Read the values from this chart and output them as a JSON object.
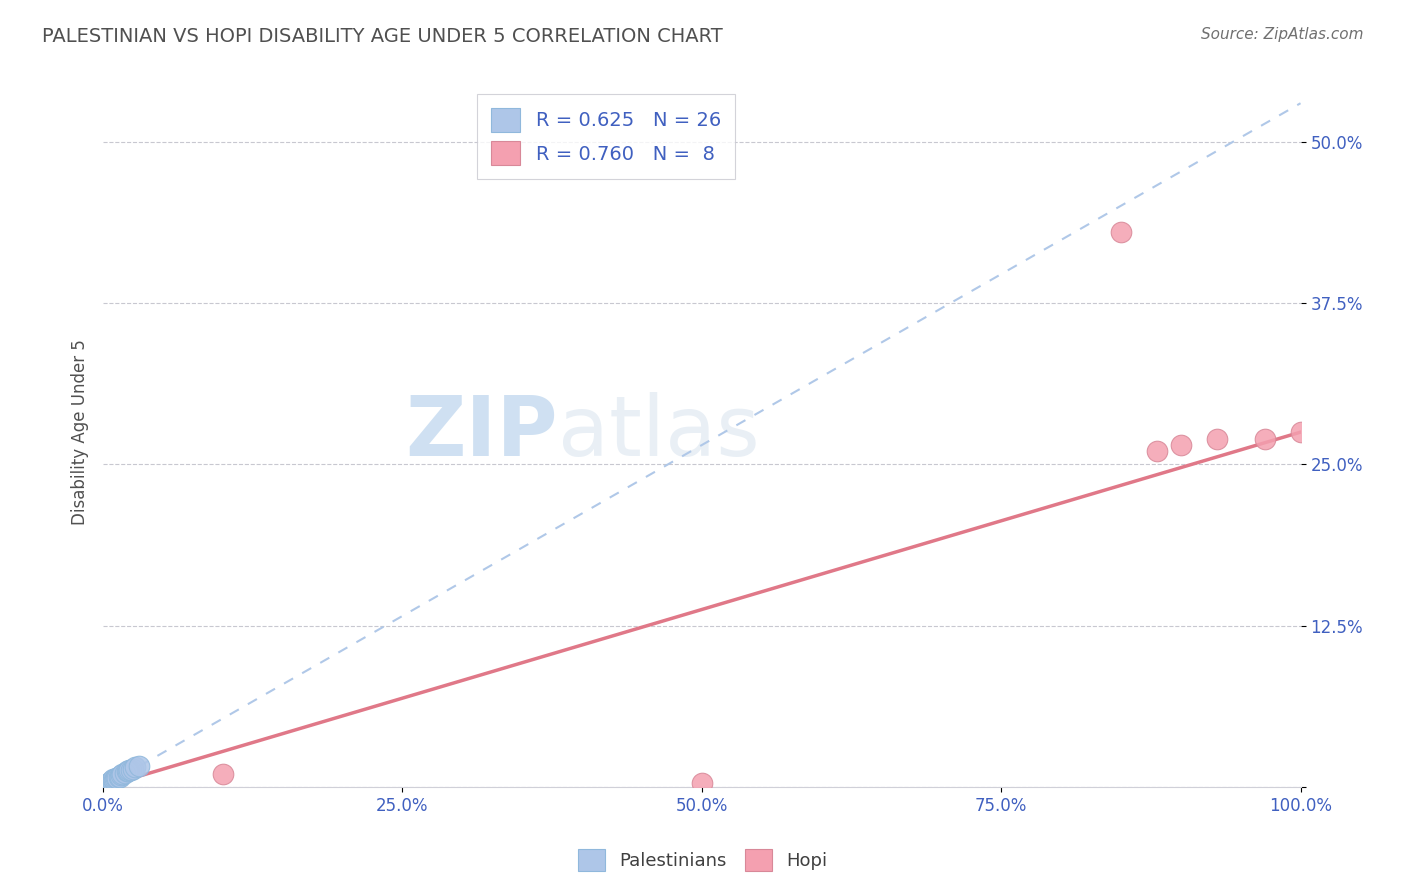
{
  "title": "PALESTINIAN VS HOPI DISABILITY AGE UNDER 5 CORRELATION CHART",
  "source": "Source: ZipAtlas.com",
  "ylabel": "Disability Age Under 5",
  "xlim": [
    0,
    1.0
  ],
  "ylim": [
    0,
    0.55
  ],
  "xtick_vals": [
    0.0,
    0.25,
    0.5,
    0.75,
    1.0
  ],
  "xtick_labels": [
    "0.0%",
    "25.0%",
    "50.0%",
    "75.0%",
    "100.0%"
  ],
  "ytick_vals": [
    0.0,
    0.125,
    0.25,
    0.375,
    0.5
  ],
  "ytick_labels": [
    "",
    "12.5%",
    "25.0%",
    "37.5%",
    "50.0%"
  ],
  "palestinian_R": 0.625,
  "palestinian_N": 26,
  "hopi_R": 0.76,
  "hopi_N": 8,
  "palestinian_color": "#aec6e8",
  "hopi_color": "#f4a0b0",
  "palestinian_line_color": "#b0c8e8",
  "hopi_line_color": "#e07888",
  "tick_color": "#4060c0",
  "grid_color": "#c8c8d0",
  "title_color": "#505050",
  "source_color": "#707070",
  "ylabel_color": "#505050",
  "pal_x": [
    0.003,
    0.004,
    0.005,
    0.005,
    0.006,
    0.006,
    0.007,
    0.007,
    0.008,
    0.008,
    0.009,
    0.01,
    0.011,
    0.012,
    0.013,
    0.014,
    0.015,
    0.016,
    0.018,
    0.02,
    0.021,
    0.022,
    0.023,
    0.025,
    0.027,
    0.03
  ],
  "pal_y": [
    0.001,
    0.002,
    0.001,
    0.003,
    0.002,
    0.004,
    0.003,
    0.005,
    0.004,
    0.006,
    0.005,
    0.006,
    0.007,
    0.007,
    0.008,
    0.008,
    0.009,
    0.01,
    0.011,
    0.012,
    0.012,
    0.013,
    0.013,
    0.014,
    0.015,
    0.016
  ],
  "hopi_x": [
    0.1,
    0.5,
    0.85,
    0.88,
    0.9,
    0.93,
    0.97,
    1.0
  ],
  "hopi_y": [
    0.01,
    0.003,
    0.43,
    0.26,
    0.265,
    0.27,
    0.27,
    0.275
  ],
  "pal_line_x": [
    0.0,
    1.0
  ],
  "pal_line_y": [
    0.0,
    0.53
  ],
  "hopi_line_x": [
    0.0,
    1.0
  ],
  "hopi_line_y": [
    0.0,
    0.275
  ]
}
